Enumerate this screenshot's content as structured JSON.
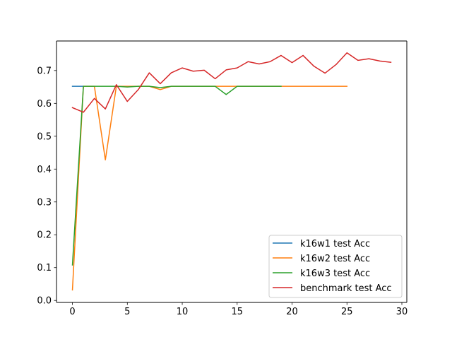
{
  "chart_data": {
    "type": "line",
    "title": "",
    "xlabel": "",
    "ylabel": "",
    "xlim": [
      -1.45,
      30.45
    ],
    "ylim": [
      -0.006,
      0.79
    ],
    "grid": false,
    "legend_position": "lower-right",
    "x_ticks": [
      0,
      5,
      10,
      15,
      20,
      25,
      30
    ],
    "y_ticks": [
      0.0,
      0.1,
      0.2,
      0.3,
      0.4,
      0.5,
      0.6,
      0.7
    ],
    "x_tick_labels": [
      "0",
      "5",
      "10",
      "15",
      "20",
      "25",
      "30"
    ],
    "y_tick_labels": [
      "0.0",
      "0.1",
      "0.2",
      "0.3",
      "0.4",
      "0.5",
      "0.6",
      "0.7"
    ],
    "series": [
      {
        "name": "k16w1 test Acc",
        "color": "#1f77b4",
        "x": [
          0,
          1
        ],
        "y": [
          0.652,
          0.652
        ]
      },
      {
        "name": "k16w2 test Acc",
        "color": "#ff7f0e",
        "x": [
          0,
          1,
          2,
          3,
          4,
          5,
          6,
          7,
          8,
          9,
          10,
          11,
          12,
          13,
          14,
          15,
          16,
          17,
          18,
          19,
          20,
          21,
          22,
          23,
          24,
          25
        ],
        "y": [
          0.032,
          0.652,
          0.652,
          0.428,
          0.652,
          0.652,
          0.652,
          0.652,
          0.642,
          0.652,
          0.652,
          0.652,
          0.652,
          0.652,
          0.652,
          0.652,
          0.652,
          0.652,
          0.652,
          0.652,
          0.652,
          0.652,
          0.652,
          0.652,
          0.652,
          0.652
        ]
      },
      {
        "name": "k16w3 test Acc",
        "color": "#2ca02c",
        "x": [
          0,
          1,
          2,
          3,
          4,
          5,
          6,
          7,
          8,
          9,
          10,
          11,
          12,
          13,
          14,
          15,
          16,
          17,
          18,
          19
        ],
        "y": [
          0.108,
          0.652,
          0.652,
          0.652,
          0.652,
          0.65,
          0.652,
          0.652,
          0.648,
          0.652,
          0.652,
          0.652,
          0.652,
          0.652,
          0.627,
          0.652,
          0.652,
          0.652,
          0.652,
          0.652
        ]
      },
      {
        "name": "benchmark test Acc",
        "color": "#d62728",
        "x": [
          0,
          1,
          2,
          3,
          4,
          5,
          6,
          7,
          8,
          9,
          10,
          11,
          12,
          13,
          14,
          15,
          16,
          17,
          18,
          19,
          20,
          21,
          22,
          23,
          24,
          25,
          26,
          27,
          28,
          29
        ],
        "y": [
          0.587,
          0.573,
          0.615,
          0.583,
          0.657,
          0.606,
          0.642,
          0.693,
          0.66,
          0.693,
          0.708,
          0.698,
          0.701,
          0.675,
          0.702,
          0.708,
          0.727,
          0.72,
          0.727,
          0.746,
          0.724,
          0.746,
          0.713,
          0.692,
          0.718,
          0.754,
          0.731,
          0.736,
          0.729,
          0.725
        ]
      }
    ]
  }
}
